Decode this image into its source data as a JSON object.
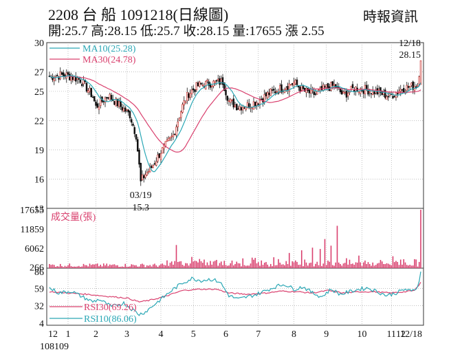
{
  "header": {
    "title": "2208  台  船 1091218(日線圖)",
    "stats": "開:25.7 高:28.15 低:25.7 收:28.15 量:17655 漲 2.55",
    "source": "時報資訊"
  },
  "colors": {
    "ma10": "#2aa7b5",
    "ma30": "#d9406e",
    "rsi30": "#d9406e",
    "rsi10": "#2aa7b5",
    "volume": "#d9406e",
    "candle": "#111111",
    "candle_up": "#c9302c",
    "grid": "#999999"
  },
  "chart_data": [
    {
      "type": "candlestick",
      "panel": "price",
      "yticks": [
        "30",
        "27",
        "25",
        "22",
        "19",
        "16",
        "13"
      ],
      "ytick_values": [
        30,
        27,
        25,
        22,
        19,
        16,
        13
      ],
      "ylim": [
        13,
        30
      ],
      "legend": [
        {
          "label": "MA10(25.28)",
          "color": "#2aa7b5"
        },
        {
          "label": "MA30(24.78)",
          "color": "#d9406e"
        }
      ],
      "annotations": {
        "low_date": "03/19",
        "low_value": "15.3",
        "last_date": "12/18",
        "last_value": "28.15"
      },
      "x_index": {
        "start": 0,
        "end": 240,
        "low_index": 59
      },
      "anchors": [
        [
          0,
          26.5
        ],
        [
          10,
          26.7
        ],
        [
          20,
          26.2
        ],
        [
          28,
          24.5
        ],
        [
          30,
          23.4
        ],
        [
          38,
          24.6
        ],
        [
          45,
          23.6
        ],
        [
          52,
          22.6
        ],
        [
          56,
          20.5
        ],
        [
          59,
          15.8
        ],
        [
          62,
          16.5
        ],
        [
          66,
          17.2
        ],
        [
          72,
          18.8
        ],
        [
          80,
          20.5
        ],
        [
          86,
          23.5
        ],
        [
          90,
          24.8
        ],
        [
          96,
          25.6
        ],
        [
          102,
          25.8
        ],
        [
          108,
          25.9
        ],
        [
          112,
          26.0
        ],
        [
          116,
          24.0
        ],
        [
          122,
          23.4
        ],
        [
          128,
          23.6
        ],
        [
          135,
          24.0
        ],
        [
          142,
          24.8
        ],
        [
          150,
          25.3
        ],
        [
          158,
          25.9
        ],
        [
          165,
          25.0
        ],
        [
          172,
          24.7
        ],
        [
          178,
          25.3
        ],
        [
          184,
          25.6
        ],
        [
          190,
          24.6
        ],
        [
          197,
          25.3
        ],
        [
          204,
          25.2
        ],
        [
          212,
          24.9
        ],
        [
          220,
          24.5
        ],
        [
          228,
          25.3
        ],
        [
          234,
          25.5
        ],
        [
          238,
          25.7
        ],
        [
          240,
          28.15
        ]
      ]
    },
    {
      "type": "bar",
      "panel": "volume",
      "label": "成交量(張)",
      "yticks": [
        "17655",
        "11859",
        "6062",
        "266"
      ],
      "ytick_values": [
        17655,
        11859,
        6062,
        266
      ],
      "ylim": [
        0,
        17655
      ],
      "spikes": [
        [
          82,
          7000
        ],
        [
          92,
          3400
        ],
        [
          100,
          2600
        ],
        [
          108,
          2500
        ],
        [
          118,
          2300
        ],
        [
          133,
          3100
        ],
        [
          145,
          3300
        ],
        [
          155,
          4600
        ],
        [
          163,
          5400
        ],
        [
          170,
          6200
        ],
        [
          175,
          5800
        ],
        [
          178,
          8800
        ],
        [
          182,
          6800
        ],
        [
          186,
          12800
        ],
        [
          200,
          3800
        ],
        [
          222,
          3600
        ],
        [
          229,
          2700
        ],
        [
          240,
          17655
        ]
      ],
      "base": 800
    },
    {
      "type": "line",
      "panel": "rsi",
      "yticks": [
        "86",
        "59",
        "32",
        "4"
      ],
      "ytick_values": [
        86,
        59,
        32,
        4
      ],
      "ylim": [
        4,
        86
      ],
      "series": [
        {
          "name": "RSI30(69.26)",
          "color": "#d9406e",
          "anchors": [
            [
              0,
              54
            ],
            [
              12,
              52
            ],
            [
              24,
              50
            ],
            [
              36,
              47
            ],
            [
              50,
              44
            ],
            [
              58,
              38
            ],
            [
              64,
              40
            ],
            [
              74,
              46
            ],
            [
              86,
              56
            ],
            [
              96,
              58
            ],
            [
              108,
              58
            ],
            [
              116,
              52
            ],
            [
              128,
              50
            ],
            [
              140,
              52
            ],
            [
              150,
              55
            ],
            [
              160,
              54
            ],
            [
              170,
              52
            ],
            [
              180,
              56
            ],
            [
              190,
              52
            ],
            [
              200,
              54
            ],
            [
              210,
              54
            ],
            [
              220,
              52
            ],
            [
              230,
              54
            ],
            [
              236,
              56
            ],
            [
              240,
              69.26
            ]
          ]
        },
        {
          "name": "RSI10(86.06)",
          "color": "#2aa7b5",
          "anchors": [
            [
              0,
              60
            ],
            [
              6,
              52
            ],
            [
              14,
              55
            ],
            [
              22,
              45
            ],
            [
              28,
              38
            ],
            [
              32,
              42
            ],
            [
              40,
              30
            ],
            [
              48,
              36
            ],
            [
              54,
              25
            ],
            [
              58,
              18
            ],
            [
              62,
              22
            ],
            [
              68,
              34
            ],
            [
              74,
              46
            ],
            [
              80,
              58
            ],
            [
              86,
              68
            ],
            [
              92,
              75
            ],
            [
              98,
              72
            ],
            [
              104,
              74
            ],
            [
              110,
              70
            ],
            [
              116,
              48
            ],
            [
              122,
              42
            ],
            [
              128,
              46
            ],
            [
              134,
              50
            ],
            [
              140,
              56
            ],
            [
              146,
              62
            ],
            [
              152,
              66
            ],
            [
              158,
              58
            ],
            [
              164,
              62
            ],
            [
              170,
              52
            ],
            [
              176,
              46
            ],
            [
              182,
              58
            ],
            [
              188,
              50
            ],
            [
              194,
              54
            ],
            [
              200,
              58
            ],
            [
              206,
              60
            ],
            [
              212,
              54
            ],
            [
              218,
              48
            ],
            [
              224,
              52
            ],
            [
              230,
              58
            ],
            [
              234,
              54
            ],
            [
              238,
              62
            ],
            [
              240,
              86.06
            ]
          ]
        }
      ]
    }
  ],
  "xaxis": {
    "labels": [
      "12",
      "1",
      "2",
      "3",
      "4",
      "5",
      "6",
      "7",
      "8",
      "9",
      "10",
      "11",
      "12",
      "12/18"
    ],
    "label_index": [
      0,
      12,
      30,
      50,
      72,
      93,
      114,
      135,
      158,
      179,
      202,
      221,
      240,
      254
    ],
    "year_label": "108109"
  }
}
